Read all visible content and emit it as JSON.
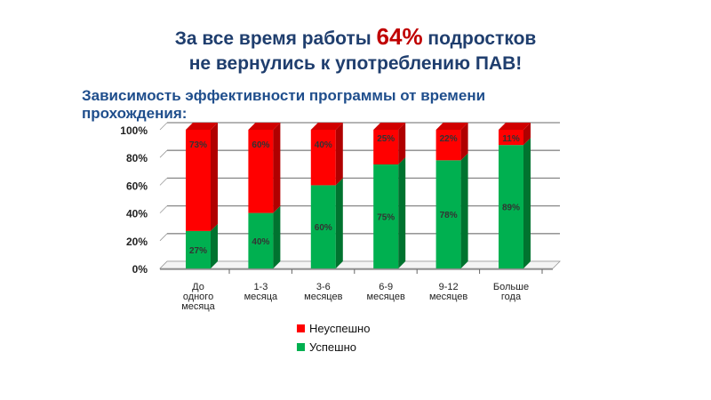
{
  "header": {
    "line1_pre": "За все время работы ",
    "line1_highlight": "64%",
    "line1_post": " подростков",
    "line2": "не вернулись к употреблению ПАВ!"
  },
  "chart_data": {
    "type": "bar",
    "stacked": true,
    "title": "Зависимость эффективности программы от времени прохождения:",
    "categories": [
      "До одного месяца",
      "1-3 месяца",
      "3-6 месяцев",
      "6-9 месяцев",
      "9-12 месяцев",
      "Больше года"
    ],
    "category_lines": [
      [
        "До",
        "одного",
        "месяца"
      ],
      [
        "1-3",
        "месяца"
      ],
      [
        "3-6",
        "месяцев"
      ],
      [
        "6-9",
        "месяцев"
      ],
      [
        "9-12",
        "месяцев"
      ],
      [
        "Больше",
        "года"
      ]
    ],
    "series": [
      {
        "name": "Успешно",
        "color": "#00b050",
        "values": [
          27,
          40,
          60,
          75,
          78,
          89
        ],
        "labels": [
          "27%",
          "40%",
          "60%",
          "75%",
          "78%",
          "89%"
        ]
      },
      {
        "name": "Неуспешно",
        "color": "#ff0000",
        "values": [
          73,
          60,
          40,
          25,
          22,
          11
        ],
        "labels": [
          "73%",
          "60%",
          "40%",
          "25%",
          "22%",
          "11%"
        ]
      }
    ],
    "ylim": [
      0,
      100
    ],
    "yticks": [
      "0%",
      "20%",
      "40%",
      "60%",
      "80%",
      "100%"
    ],
    "grid": true,
    "legend": "bottom",
    "legend_entries": [
      "Неуспешно",
      "Успешно"
    ]
  }
}
